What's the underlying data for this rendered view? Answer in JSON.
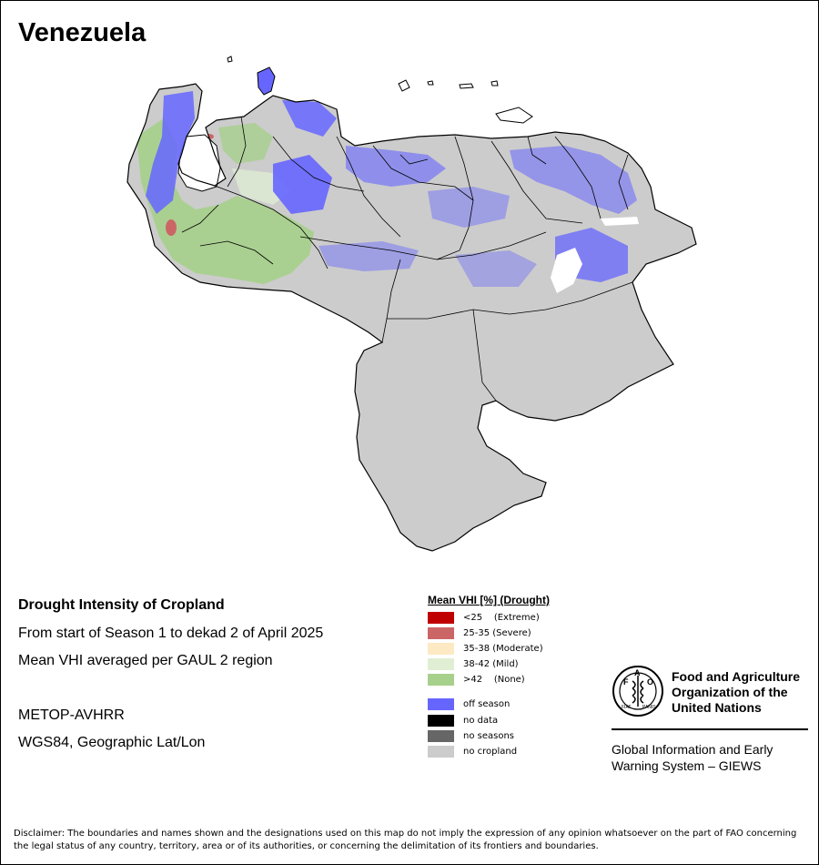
{
  "title": "Venezuela",
  "map": {
    "country": "Venezuela",
    "colors": {
      "cropland_none": "#cccccc",
      "off_season": "#6666ff",
      "none_drought": "#a8d08d",
      "mild": "#e0efd4",
      "severe": "#cc6666",
      "no_data_white": "#ffffff",
      "border": "#000000"
    }
  },
  "info": {
    "heading": "Drought Intensity of Cropland",
    "period": "From start of Season 1 to dekad 2 of April 2025",
    "method": "Mean VHI averaged per GAUL 2 region",
    "sensor": "METOP-AVHRR",
    "projection": "WGS84, Geographic Lat/Lon"
  },
  "legend": {
    "title": "Mean VHI [%] (Drought)",
    "items": [
      {
        "label": "<25    (Extreme)",
        "color": "#c00000"
      },
      {
        "label": "25-35 (Severe)",
        "color": "#cc6666"
      },
      {
        "label": "35-38 (Moderate)",
        "color": "#fde9c4"
      },
      {
        "label": "38-42 (Mild)",
        "color": "#e0efd4"
      },
      {
        "label": ">42    (None)",
        "color": "#a8d08d"
      },
      {
        "label": "off season",
        "color": "#6666ff"
      },
      {
        "label": "no data",
        "color": "#000000"
      },
      {
        "label": "no seasons",
        "color": "#666666"
      },
      {
        "label": "no cropland",
        "color": "#cccccc"
      }
    ]
  },
  "fao": {
    "emblem_letters": "FAO",
    "emblem_motto": "FIAT PANIS",
    "name_line1": "Food and Agriculture",
    "name_line2": "Organization of the",
    "name_line3": "United Nations",
    "giews_line1": "Global Information and Early",
    "giews_line2": "Warning System – GIEWS"
  },
  "disclaimer": "Disclaimer: The boundaries and names shown and the designations used on this map do not imply the expression of any opinion whatsoever on the part of FAO concerning the legal status of any country, territory, area or of its authorities, or concerning the delimitation of its frontiers and boundaries."
}
